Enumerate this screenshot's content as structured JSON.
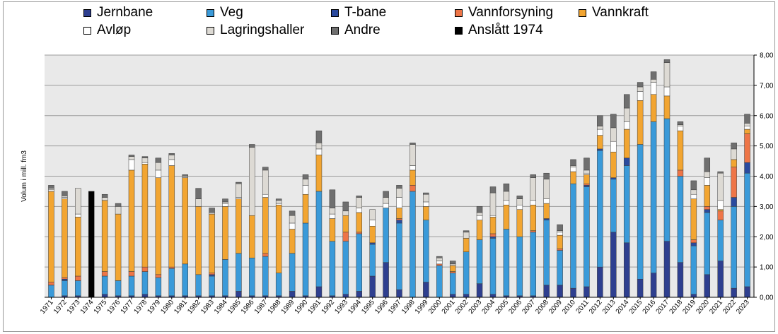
{
  "chart_data": {
    "type": "bar",
    "stacked": true,
    "ylabel": "Volum i mill. fm3",
    "ylim": [
      0,
      8
    ],
    "yticks": [
      "0,00",
      "1,00",
      "2,00",
      "3,00",
      "4,00",
      "5,00",
      "6,00",
      "7,00",
      "8,00"
    ],
    "grid": true,
    "legend_position": "top",
    "categories": [
      "1971",
      "1972",
      "1973",
      "1974",
      "1975",
      "1976",
      "1977",
      "1978",
      "1979",
      "1980",
      "1981",
      "1982",
      "1983",
      "1984",
      "1985",
      "1986",
      "1987",
      "1988",
      "1989",
      "1990",
      "1991",
      "1992",
      "1993",
      "1994",
      "1995",
      "1996",
      "1997",
      "1998",
      "1999",
      "2000",
      "2001",
      "2002",
      "2003",
      "2004",
      "2005",
      "2006",
      "2007",
      "2008",
      "2009",
      "2010",
      "2011",
      "2012",
      "2013",
      "2014",
      "2015",
      "2016",
      "2017",
      "2018",
      "2019",
      "2020",
      "2021",
      "2022",
      "2023"
    ],
    "series": [
      {
        "name": "Jernbane",
        "color": "#2e3f8f",
        "values": [
          0.0,
          0.05,
          0.05,
          0,
          0.1,
          0.05,
          0.05,
          0.1,
          0.05,
          0.05,
          0.05,
          0.05,
          0.05,
          0.05,
          0.2,
          0.05,
          0.05,
          0.05,
          0.2,
          0.05,
          0.35,
          0.05,
          0.1,
          0.2,
          0.7,
          1.15,
          0.25,
          0,
          0.5,
          0,
          0.1,
          0.1,
          0.45,
          0.1,
          0.05,
          0.05,
          0.05,
          0.4,
          0.4,
          0.3,
          0.35,
          1.0,
          2.15,
          1.8,
          0.6,
          0.8,
          1.85,
          1.15,
          0.1,
          0.75,
          1.2,
          0.3,
          0.35
        ]
      },
      {
        "name": "Veg",
        "color": "#3a9ad9",
        "values": [
          0.4,
          0.5,
          0.5,
          0,
          0.6,
          0.5,
          0.65,
          0.75,
          0.6,
          0.9,
          1.05,
          0.7,
          0.65,
          1.2,
          1.25,
          1.25,
          1.3,
          0.75,
          1.25,
          2.4,
          3.15,
          1.8,
          1.75,
          1.9,
          1.05,
          1.8,
          2.2,
          3.5,
          2.05,
          1.05,
          0.7,
          1.4,
          1.45,
          1.85,
          2.2,
          1.95,
          2.1,
          2.15,
          1.15,
          3.45,
          3.3,
          3.85,
          1.75,
          2.55,
          4.45,
          5.0,
          4.05,
          2.85,
          1.6,
          2.05,
          1.35,
          2.7,
          3.75
        ]
      },
      {
        "name": "T-bane",
        "color": "#2a4a9e",
        "values": [
          0,
          0.05,
          0,
          0,
          0,
          0,
          0,
          0,
          0,
          0,
          0,
          0,
          0.05,
          0,
          0,
          0,
          0,
          0,
          0,
          0,
          0,
          0,
          0,
          0,
          0.05,
          0,
          0.1,
          0,
          0,
          0,
          0,
          0,
          0,
          0.05,
          0,
          0,
          0,
          0.05,
          0,
          0,
          0.05,
          0.05,
          0.05,
          0.25,
          0,
          0,
          0,
          0,
          0.1,
          0.1,
          0,
          0.3,
          0.35
        ]
      },
      {
        "name": "Vannforsyning",
        "color": "#ee7547",
        "values": [
          0.1,
          0.05,
          0.15,
          0,
          0.15,
          0,
          0.15,
          0.15,
          0.1,
          0.05,
          0,
          0,
          0.05,
          0,
          0,
          0,
          0.1,
          0,
          0,
          0,
          0,
          0,
          0.3,
          0.05,
          0,
          0,
          0.05,
          0.2,
          0,
          0.05,
          0.05,
          0,
          0,
          0.1,
          0,
          0,
          0.05,
          0,
          0.05,
          0,
          0.05,
          0,
          0,
          0,
          0,
          0,
          0,
          0.2,
          0.1,
          0.1,
          0.3,
          1.0,
          0.95
        ]
      },
      {
        "name": "Vannkraft",
        "color": "#f2a531",
        "values": [
          3.0,
          2.6,
          1.95,
          0,
          2.35,
          2.2,
          3.35,
          3.4,
          3.2,
          3.35,
          2.85,
          2.25,
          1.95,
          1.75,
          1.8,
          1.4,
          1.85,
          2.25,
          0.8,
          0.95,
          1.2,
          0.75,
          0.55,
          0.65,
          0.55,
          0,
          0.35,
          0.5,
          0.45,
          0,
          0.2,
          0.45,
          0.65,
          0.55,
          0.8,
          0.9,
          0.85,
          0.5,
          0.45,
          0.4,
          0.3,
          0.45,
          0.85,
          0.95,
          1.45,
          0.9,
          0.75,
          1.3,
          1.35,
          0.7,
          0.05,
          0.25,
          0.15
        ]
      },
      {
        "name": "Avløp",
        "color": "#ffffff",
        "values": [
          0.05,
          0.05,
          0.1,
          0,
          0,
          0,
          0.35,
          0.05,
          0.25,
          0.2,
          0,
          0,
          0,
          0.1,
          0.05,
          0,
          0.1,
          0.05,
          0.2,
          0.3,
          0.2,
          0.15,
          0,
          0.15,
          0.2,
          0.15,
          0.35,
          0.15,
          0.15,
          0.1,
          0,
          0,
          0.15,
          0.05,
          0.15,
          0.15,
          0.15,
          0.15,
          0.1,
          0.15,
          0.05,
          0.2,
          0.35,
          0.25,
          0.3,
          0.4,
          0.3,
          0.15,
          0.15,
          0.25,
          0.3,
          0,
          0.1
        ]
      },
      {
        "name": "Lagringshaller",
        "color": "#dddad4",
        "values": [
          0.05,
          0.05,
          0.85,
          0,
          0.1,
          0.25,
          0.1,
          0.15,
          0.25,
          0.15,
          0.05,
          0.25,
          0.05,
          0.05,
          0.45,
          2.25,
          0.8,
          0.1,
          0.25,
          0.2,
          0.2,
          0.2,
          0.15,
          0.35,
          0.35,
          0.2,
          0.3,
          0.7,
          0.25,
          0.1,
          0.05,
          0.2,
          0.1,
          0.75,
          0.3,
          0.2,
          0.75,
          0.65,
          0.05,
          0.05,
          0.1,
          0.1,
          0.45,
          0.45,
          0.15,
          0.1,
          0.8,
          0.05,
          0.15,
          0.2,
          0.9,
          0.35,
          0.1
        ]
      },
      {
        "name": "Andre",
        "color": "#6f6f6f",
        "values": [
          0.1,
          0.15,
          0,
          0,
          0.1,
          0.1,
          0.05,
          0.05,
          0.15,
          0.05,
          0.05,
          0.35,
          0.15,
          0.1,
          0.05,
          0.1,
          0.1,
          0.05,
          0.15,
          0.15,
          0.4,
          0.6,
          0.3,
          0.05,
          0,
          0.2,
          0.1,
          0.05,
          0.05,
          0.05,
          0.1,
          0.05,
          0.2,
          0.2,
          0.25,
          0.1,
          0.1,
          0.2,
          0.2,
          0.2,
          0.4,
          0.35,
          0.45,
          0.45,
          0.15,
          0.25,
          0.1,
          0.1,
          0.3,
          0.45,
          0.05,
          0.2,
          0.3
        ]
      },
      {
        "name": "Anslått 1974",
        "color": "#000000",
        "values": [
          0,
          0,
          0,
          3.5,
          0,
          0,
          0,
          0,
          0,
          0,
          0,
          0,
          0,
          0,
          0,
          0,
          0,
          0,
          0,
          0,
          0,
          0,
          0,
          0,
          0,
          0,
          0,
          0,
          0,
          0,
          0,
          0,
          0,
          0,
          0,
          0,
          0,
          0,
          0,
          0,
          0,
          0,
          0,
          0,
          0,
          0,
          0,
          0,
          0,
          0,
          0,
          0,
          0
        ]
      }
    ]
  }
}
